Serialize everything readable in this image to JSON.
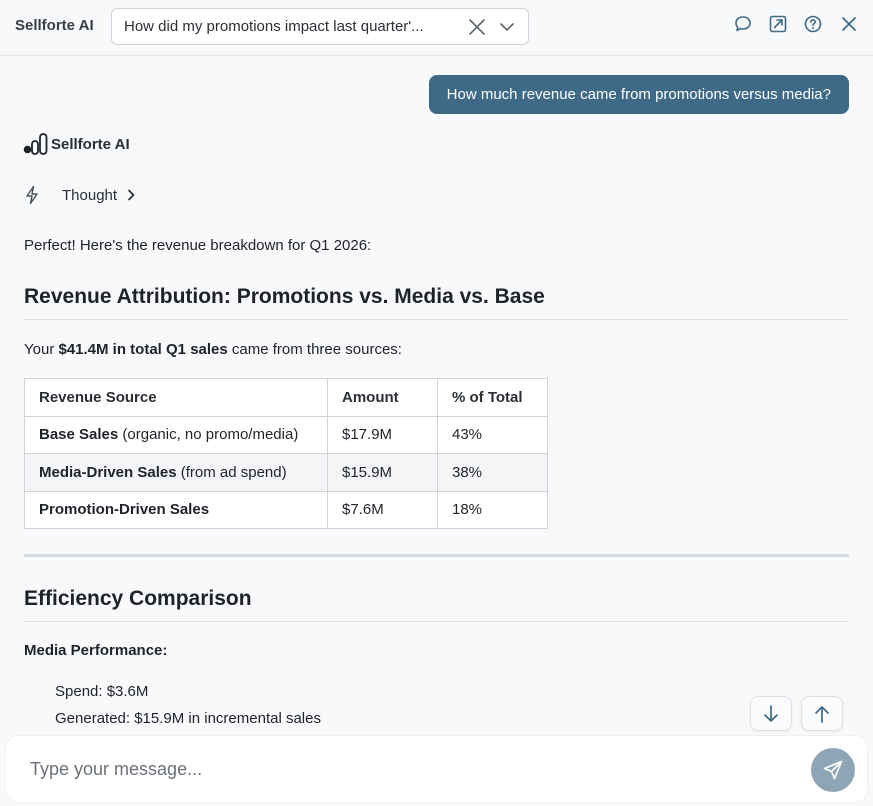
{
  "header": {
    "app_title": "Sellforte AI",
    "conversation_title": "How did my promotions impact last quarter'...",
    "icons": [
      "chat-icon",
      "open-external-icon",
      "help-icon",
      "close-icon"
    ]
  },
  "messages": {
    "user_message": "How much revenue came from promotions versus media?",
    "assistant_name": "Sellforte AI",
    "thought_label": "Thought",
    "intro": "Perfect! Here's the revenue breakdown for Q1 2026:",
    "section1_title": "Revenue Attribution: Promotions vs. Media vs. Base",
    "para_prefix": "Your ",
    "para_bold": "$41.4M in total Q1 sales",
    "para_suffix": " came from three sources:",
    "table": {
      "headers": [
        "Revenue Source",
        "Amount",
        "% of Total"
      ],
      "rows": [
        {
          "source_bold": "Base Sales",
          "source_rest": " (organic, no promo/media)",
          "amount": "$17.9M",
          "pct": "43%"
        },
        {
          "source_bold": "Media-Driven Sales",
          "source_rest": " (from ad spend)",
          "amount": "$15.9M",
          "pct": "38%"
        },
        {
          "source_bold": "Promotion-Driven Sales",
          "source_rest": "",
          "amount": "$7.6M",
          "pct": "18%"
        }
      ]
    },
    "section2_title": "Efficiency Comparison",
    "media_perf_label": "Media Performance:",
    "media_spend": "Spend: $3.6M",
    "media_generated": "Generated: $15.9M in incremental sales"
  },
  "composer": {
    "placeholder": "Type your message..."
  },
  "colors": {
    "user_bubble": "#3f6a87",
    "send_button": "#8ea5b5"
  }
}
